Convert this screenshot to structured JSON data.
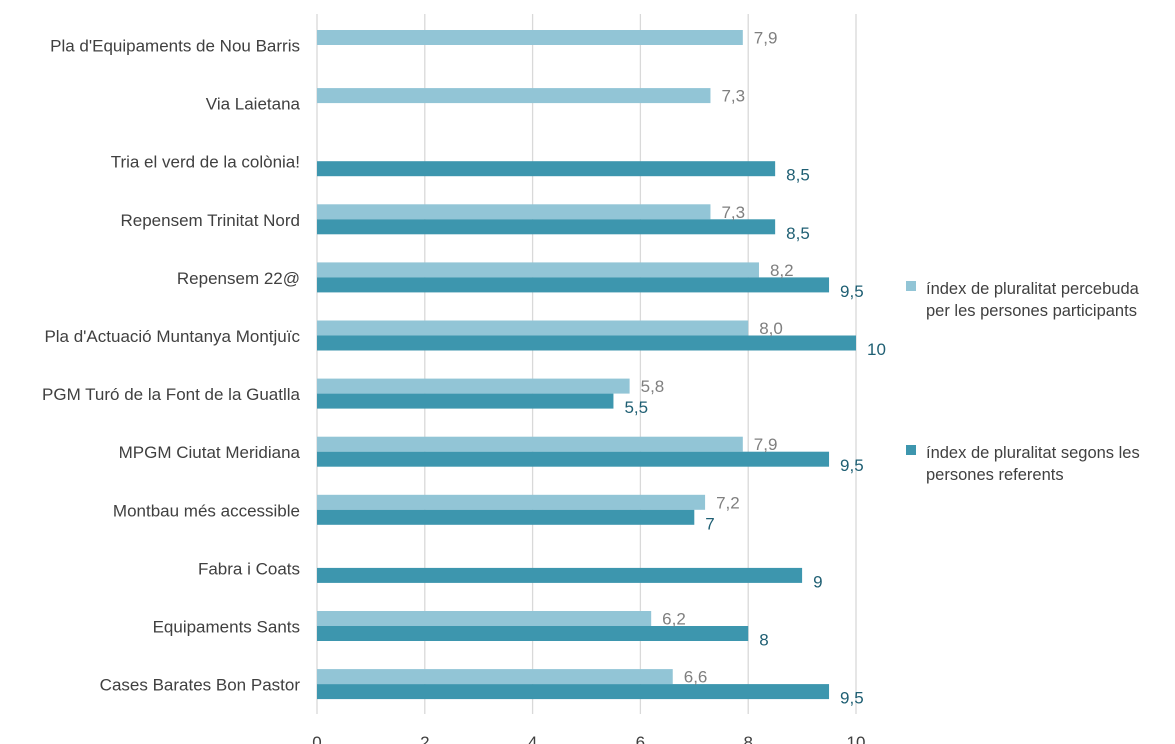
{
  "chart_data": {
    "type": "bar",
    "orientation": "horizontal",
    "categories": [
      "Pla d'Equipaments de Nou Barris",
      "Via Laietana",
      "Tria el verd de la colònia!",
      "Repensem Trinitat Nord",
      "Repensem 22@",
      "Pla d'Actuació Muntanya Montjuïc",
      "PGM Turó de la Font de la Guatlla",
      "MPGM Ciutat Meridiana",
      "Montbau més accessible",
      "Fabra i Coats",
      "Equipaments Sants",
      "Cases Barates Bon Pastor"
    ],
    "series": [
      {
        "name": "índex de pluralitat percebuda per les persones participants",
        "legend_lines": [
          "índex de pluralitat percebuda",
          "per les persones participants"
        ],
        "color": "#92C5D6",
        "label_color": "#7f7f7f",
        "values": [
          7.9,
          7.3,
          null,
          7.3,
          8.2,
          8.0,
          5.8,
          7.9,
          7.2,
          null,
          6.2,
          6.6
        ],
        "labels": [
          "7,9",
          "7,3",
          "",
          "7,3",
          "8,2",
          "8,0",
          "5,8",
          "7,9",
          "7,2",
          "",
          "6,2",
          "6,6"
        ]
      },
      {
        "name": "índex de pluralitat segons les persones referents",
        "legend_lines": [
          "índex de pluralitat segons les",
          "persones referents"
        ],
        "color": "#3D96AE",
        "label_color": "#1f5f73",
        "values": [
          null,
          null,
          8.5,
          8.5,
          9.5,
          10,
          5.5,
          9.5,
          7,
          9,
          8,
          9.5
        ],
        "labels": [
          "",
          "",
          "8,5",
          "8,5",
          "9,5",
          "10",
          "5,5",
          "9,5",
          "7",
          "9",
          "8",
          "9,5"
        ]
      }
    ],
    "xlim": [
      0,
      10
    ],
    "xticks": [
      "0",
      "2",
      "4",
      "6",
      "8",
      "10"
    ],
    "grid": true,
    "legend_position": "right"
  }
}
